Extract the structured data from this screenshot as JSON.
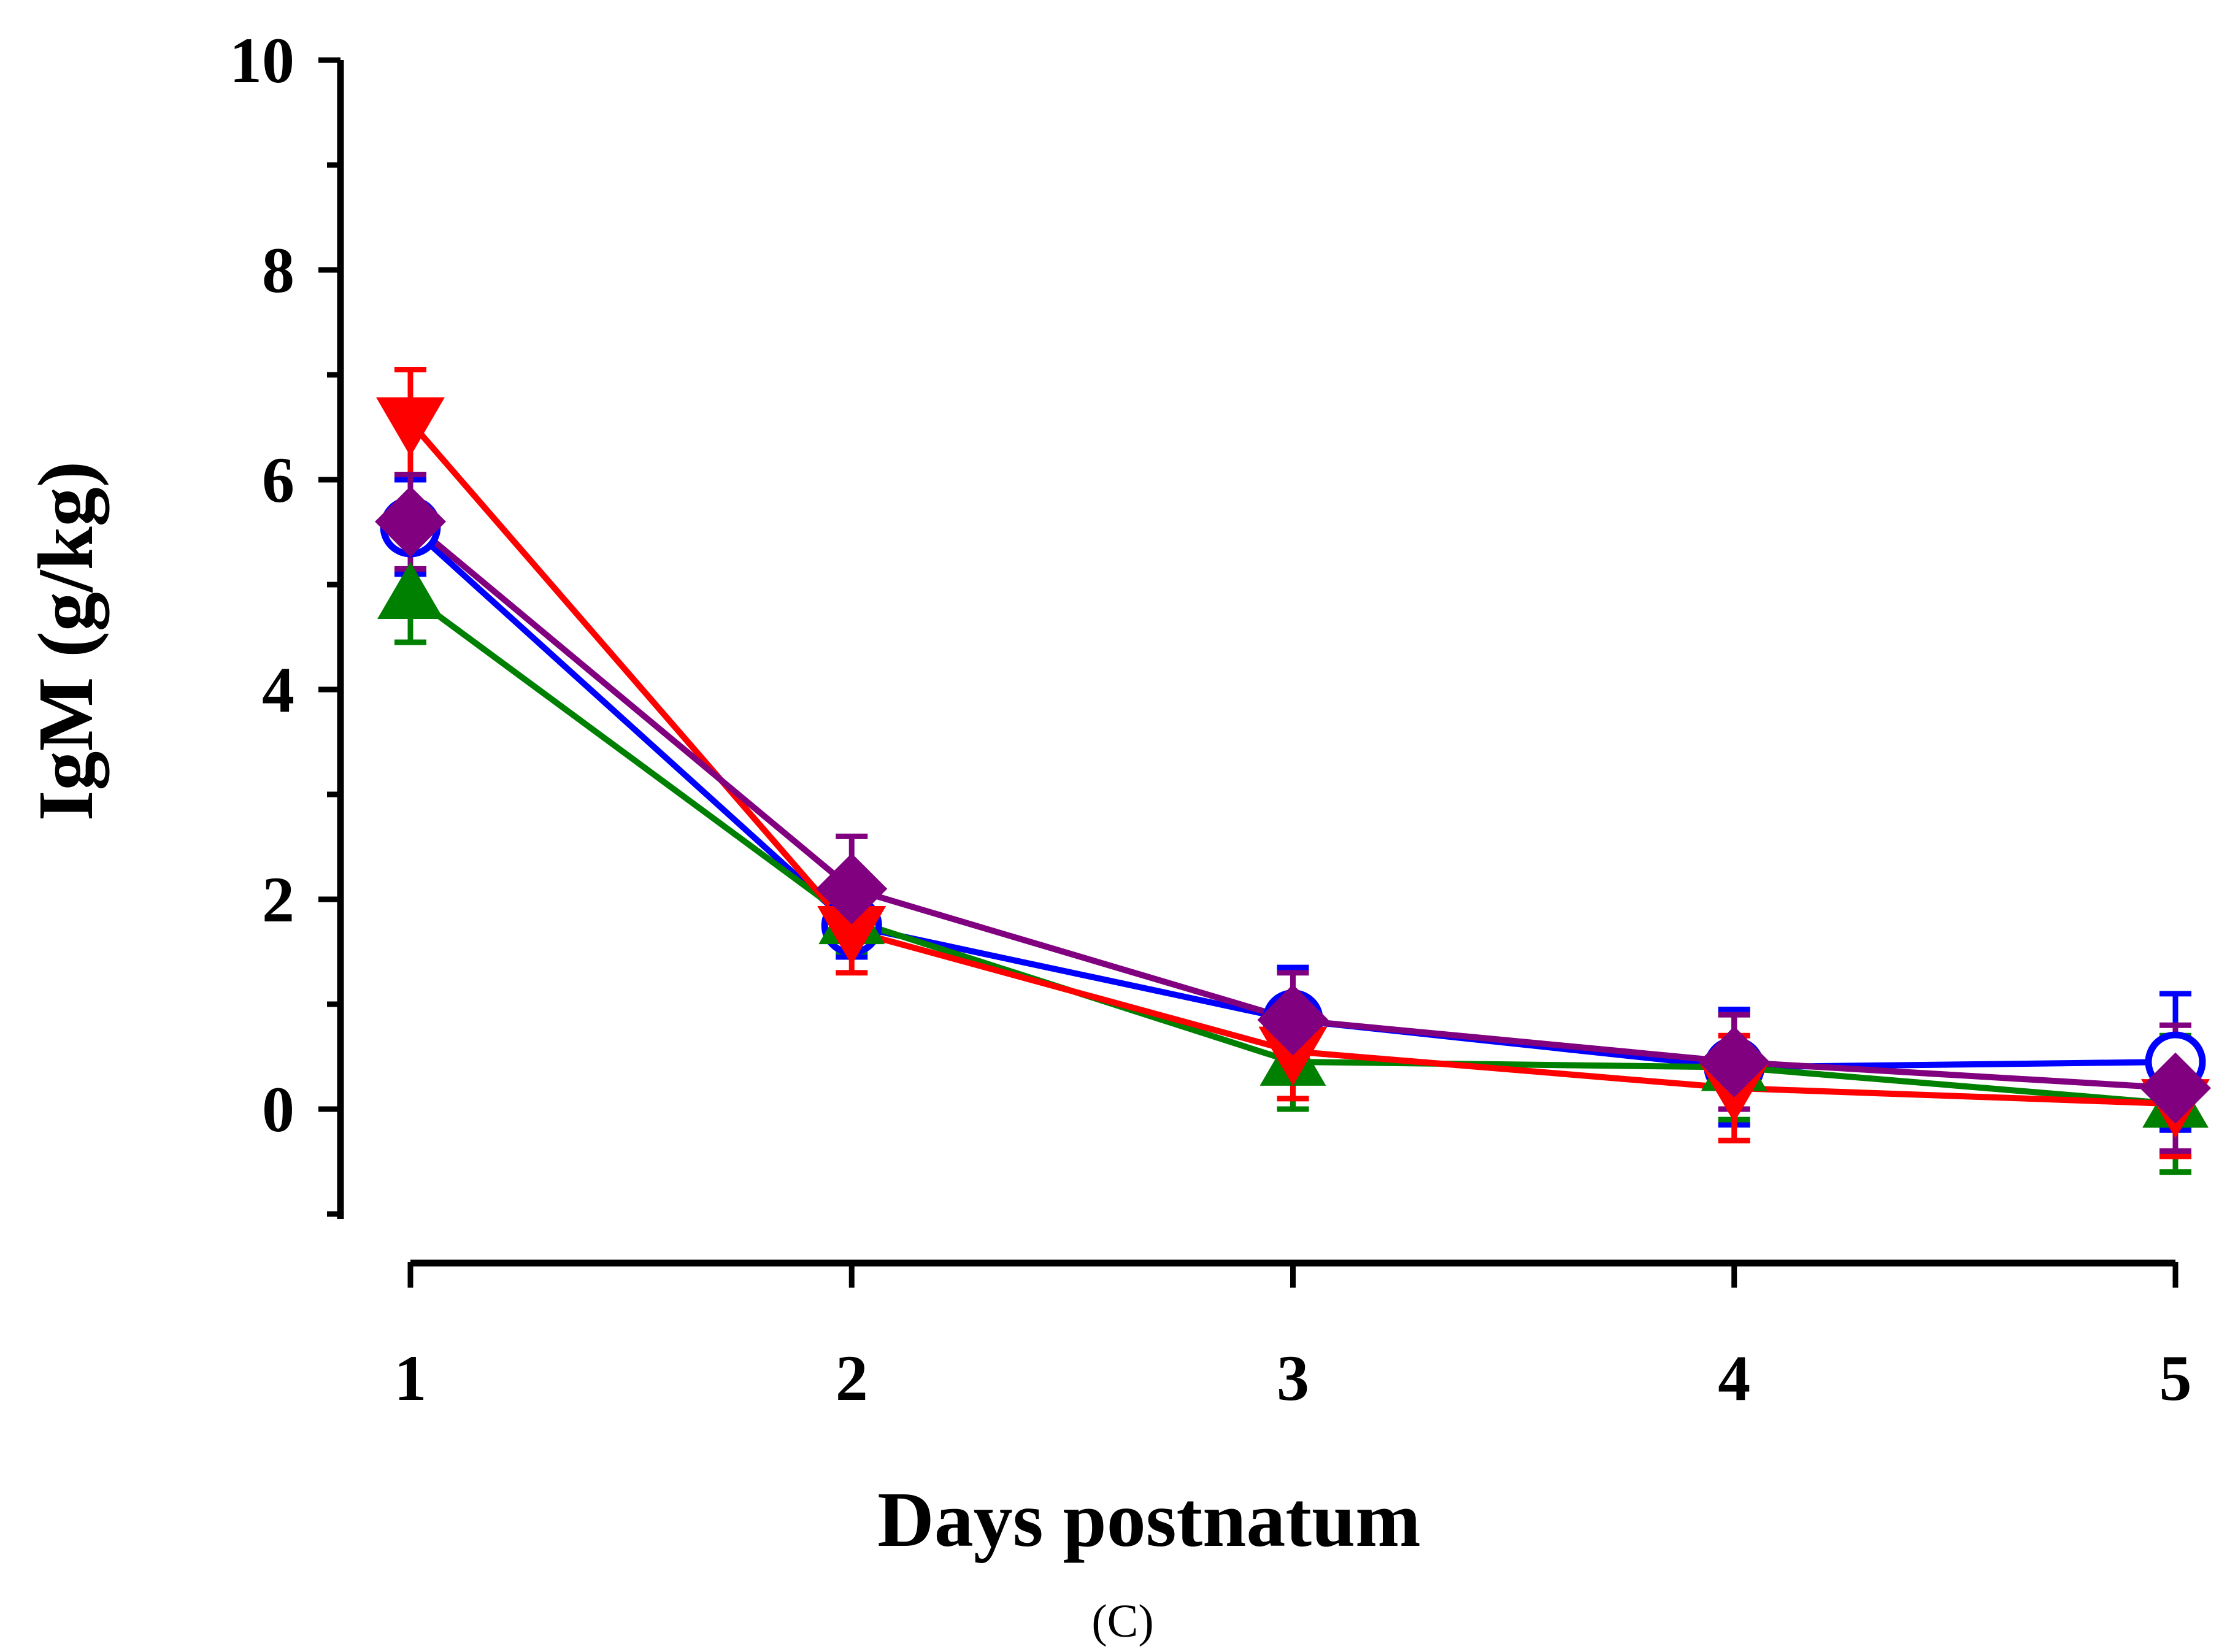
{
  "chart_data": {
    "type": "line",
    "title": "",
    "panel_label": "(C)",
    "xlabel": "Days postnatum",
    "ylabel": "IgM (g/kg)",
    "x": [
      1,
      2,
      3,
      4,
      5
    ],
    "x_tick_labels": [
      "1",
      "2",
      "3",
      "4",
      "5"
    ],
    "ylim": [
      -1,
      10
    ],
    "y_ticks": [
      0,
      2,
      4,
      6,
      8,
      10
    ],
    "y_tick_labels": [
      "0",
      "2",
      "4",
      "6",
      "8",
      "10"
    ],
    "y_minor_ticks": [
      -1,
      1,
      3,
      5,
      7,
      9
    ],
    "grid": false,
    "legend": "none",
    "series": [
      {
        "name": "blue-open-circle",
        "color": "#0000ff",
        "marker": "open-circle",
        "values": [
          5.55,
          1.75,
          0.85,
          0.4,
          0.45
        ],
        "errors": [
          0.45,
          0.3,
          0.5,
          0.55,
          0.65
        ]
      },
      {
        "name": "green-triangle-up",
        "color": "#008000",
        "marker": "triangle-up",
        "values": [
          4.9,
          1.8,
          0.45,
          0.4,
          0.05
        ],
        "errors": [
          0.45,
          0.3,
          0.45,
          0.5,
          0.65
        ]
      },
      {
        "name": "red-triangle-down",
        "color": "#ff0000",
        "marker": "triangle-down",
        "values": [
          6.55,
          1.7,
          0.55,
          0.2,
          0.05
        ],
        "errors": [
          0.5,
          0.4,
          0.45,
          0.5,
          0.5
        ]
      },
      {
        "name": "purple-diamond",
        "color": "#800080",
        "marker": "diamond",
        "values": [
          5.6,
          2.1,
          0.85,
          0.45,
          0.2
        ],
        "errors": [
          0.45,
          0.5,
          0.45,
          0.45,
          0.6
        ]
      }
    ]
  }
}
